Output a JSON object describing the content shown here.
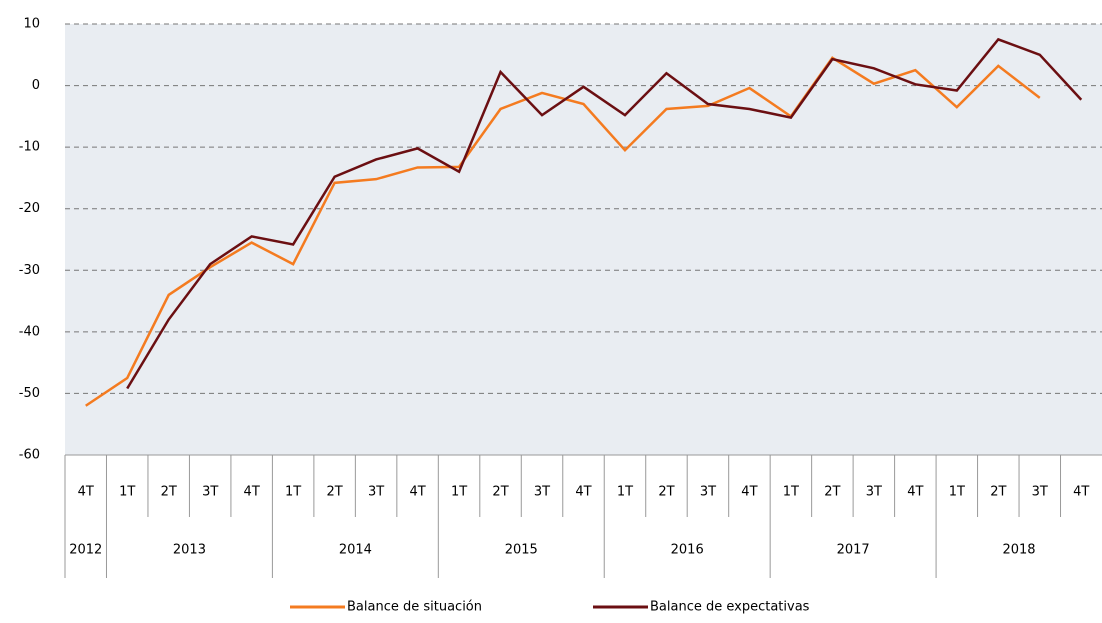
{
  "chart_data": {
    "type": "line",
    "categories": [
      "4T",
      "1T",
      "2T",
      "3T",
      "4T",
      "1T",
      "2T",
      "3T",
      "4T",
      "1T",
      "2T",
      "3T",
      "4T",
      "1T",
      "2T",
      "3T",
      "4T",
      "1T",
      "2T",
      "3T",
      "4T",
      "1T",
      "2T",
      "3T",
      "4T"
    ],
    "year_groups": [
      "2012",
      "2013",
      "2014",
      "2015",
      "2016",
      "2017",
      "2018"
    ],
    "series": [
      {
        "name": "Balance de situación",
        "color": "#f47b20",
        "values": [
          -52,
          -47.5,
          -34,
          -29.5,
          -25.5,
          -29,
          -15.8,
          -15.2,
          -13.3,
          -13.2,
          -3.8,
          -1.2,
          -3,
          -10.5,
          -3.8,
          -3.3,
          -0.4,
          -5,
          4.5,
          0.3,
          2.5,
          -3.5,
          3.2,
          -2,
          null
        ]
      },
      {
        "name": "Balance de expectativas",
        "color": "#6b0f12",
        "values": [
          null,
          -49.2,
          -38,
          -29,
          -24.5,
          -25.8,
          -14.8,
          -12,
          -10.2,
          -14,
          2.2,
          -4.8,
          -0.2,
          -4.8,
          2,
          -3,
          -3.8,
          -5.2,
          4.3,
          2.8,
          0.2,
          -0.8,
          7.5,
          5,
          -2.3
        ]
      }
    ],
    "ylim": [
      -60,
      10
    ],
    "yticks": [
      -60,
      -50,
      -40,
      -30,
      -20,
      -10,
      0,
      10
    ],
    "grid": true,
    "legend": "bottom"
  }
}
